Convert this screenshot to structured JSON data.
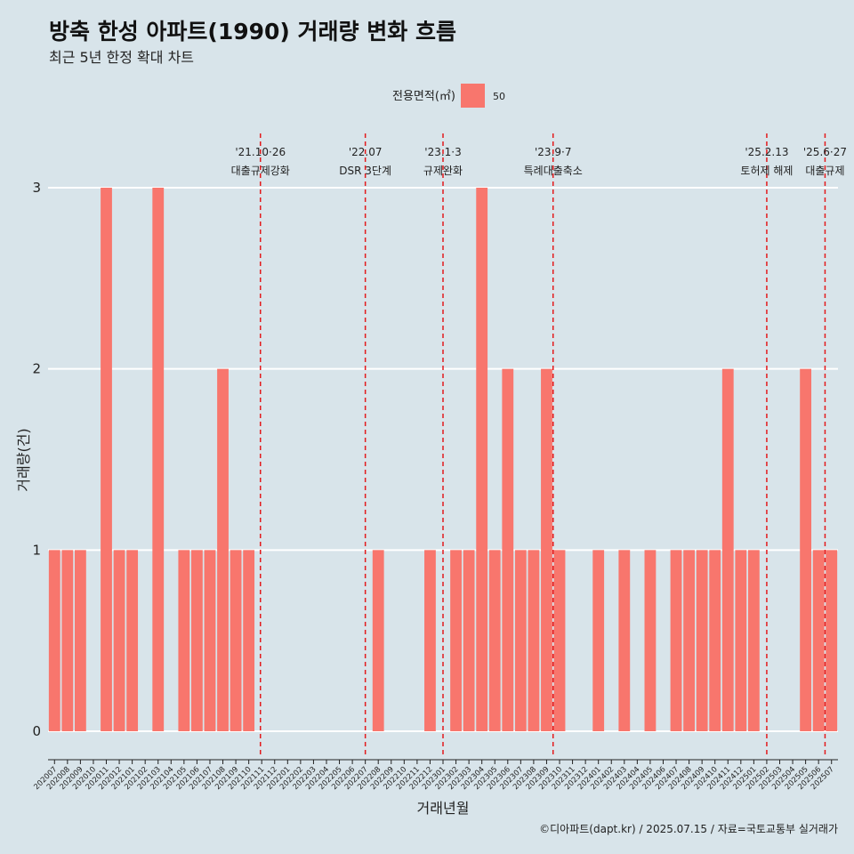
{
  "chart_data": {
    "type": "bar",
    "title": "방축 한성 아파트(1990) 거래량 변화 흐름",
    "subtitle": "최근 5년 한정 확대 차트",
    "xlabel": "거래년월",
    "ylabel": "거래량(건)",
    "ylim": [
      0,
      3
    ],
    "yticks": [
      "0",
      "1",
      "2",
      "3"
    ],
    "grid": true,
    "legend": {
      "title": "전용면적(㎡)",
      "placement": "top",
      "entries": [
        {
          "label": "50",
          "color": "#f8766d"
        }
      ]
    },
    "categories": [
      "202007",
      "202008",
      "202009",
      "202010",
      "202011",
      "202012",
      "202101",
      "202102",
      "202103",
      "202104",
      "202105",
      "202106",
      "202107",
      "202108",
      "202109",
      "202110",
      "202111",
      "202112",
      "202201",
      "202202",
      "202203",
      "202204",
      "202205",
      "202206",
      "202207",
      "202208",
      "202209",
      "202210",
      "202211",
      "202212",
      "202301",
      "202302",
      "202303",
      "202304",
      "202305",
      "202306",
      "202307",
      "202308",
      "202309",
      "202310",
      "202311",
      "202312",
      "202401",
      "202402",
      "202403",
      "202404",
      "202405",
      "202406",
      "202407",
      "202408",
      "202409",
      "202410",
      "202411",
      "202412",
      "202501",
      "202502",
      "202503",
      "202504",
      "202505",
      "202506",
      "202507"
    ],
    "series": [
      {
        "name": "50",
        "color": "#f8766d",
        "values": [
          1,
          1,
          1,
          0,
          3,
          1,
          1,
          0,
          3,
          0,
          1,
          1,
          1,
          2,
          1,
          1,
          0,
          0,
          0,
          0,
          0,
          0,
          0,
          0,
          0,
          1,
          0,
          0,
          0,
          1,
          0,
          1,
          1,
          3,
          1,
          2,
          1,
          1,
          2,
          1,
          0,
          0,
          1,
          0,
          1,
          0,
          1,
          0,
          1,
          1,
          1,
          1,
          2,
          1,
          1,
          0,
          0,
          0,
          2,
          1,
          1
        ]
      }
    ],
    "annotations": [
      {
        "date_label": "'21.10·26",
        "text": "대출규제강화",
        "after_category": "202110",
        "offset_fraction": 0.4
      },
      {
        "date_label": "'22.07",
        "text": "DSR 3단계",
        "after_category": "202206",
        "offset_fraction": 0.5
      },
      {
        "date_label": "'23.1·3",
        "text": "규제완화",
        "after_category": "202212",
        "offset_fraction": 0.5
      },
      {
        "date_label": "'23.9·7",
        "text": "특례대출축소",
        "after_category": "202309",
        "offset_fraction": 0.0
      },
      {
        "date_label": "'25.2.13",
        "text": "토허제 해제",
        "after_category": "202501",
        "offset_fraction": 0.5
      },
      {
        "date_label": "'25.6·27",
        "text": "대출규제",
        "after_category": "202506",
        "offset_fraction": 0.0
      }
    ]
  },
  "colors": {
    "background": "#d8e4ea",
    "bar": "#f8766d",
    "grid": "#ffffff",
    "event_line": "#e31a1c"
  },
  "caption": "©디아파트(dapt.kr) / 2025.07.15 / 자료=국토교통부 실거래가"
}
